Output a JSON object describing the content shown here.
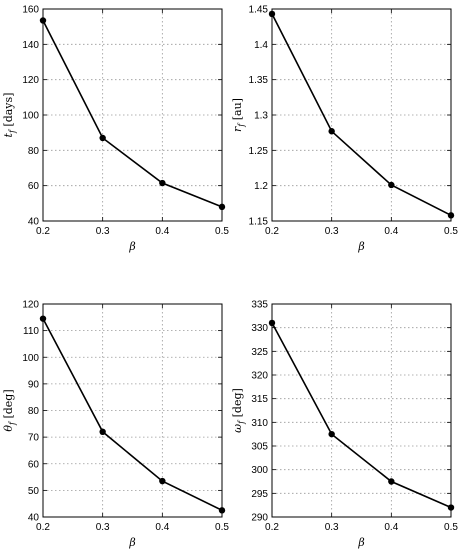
{
  "chart_data": [
    {
      "type": "line",
      "xlabel": "β",
      "ylabel": {
        "symbol": "t",
        "subscript": "f",
        "unit": "[days]"
      },
      "x": [
        0.2,
        0.3,
        0.4,
        0.5
      ],
      "values": [
        153.5,
        87,
        61.5,
        48
      ],
      "xlim": [
        0.2,
        0.5
      ],
      "ylim": [
        40,
        160
      ],
      "xticks": [
        "0.2",
        "0.3",
        "0.4",
        "0.5"
      ],
      "yticks": [
        "40",
        "60",
        "80",
        "100",
        "120",
        "140",
        "160"
      ],
      "grid": true
    },
    {
      "type": "line",
      "xlabel": "β",
      "ylabel": {
        "symbol": "r",
        "subscript": "f",
        "unit": "[au]"
      },
      "x": [
        0.2,
        0.3,
        0.4,
        0.5
      ],
      "values": [
        1.443,
        1.277,
        1.201,
        1.158
      ],
      "xlim": [
        0.2,
        0.5
      ],
      "ylim": [
        1.15,
        1.45
      ],
      "xticks": [
        "0.2",
        "0.3",
        "0.4",
        "0.5"
      ],
      "yticks": [
        "1.15",
        "1.2",
        "1.25",
        "1.3",
        "1.35",
        "1.4",
        "1.45"
      ],
      "grid": true
    },
    {
      "type": "line",
      "xlabel": "β",
      "ylabel": {
        "symbol": "θ",
        "subscript": "f",
        "unit": "[deg]"
      },
      "x": [
        0.2,
        0.3,
        0.4,
        0.5
      ],
      "values": [
        114.5,
        72,
        53.5,
        42.5
      ],
      "xlim": [
        0.2,
        0.5
      ],
      "ylim": [
        40,
        120
      ],
      "xticks": [
        "0.2",
        "0.3",
        "0.4",
        "0.5"
      ],
      "yticks": [
        "40",
        "50",
        "60",
        "70",
        "80",
        "90",
        "100",
        "110",
        "120"
      ],
      "grid": true
    },
    {
      "type": "line",
      "xlabel": "β",
      "ylabel": {
        "symbol": "ω",
        "subscript": "f",
        "unit": "[deg]"
      },
      "x": [
        0.2,
        0.3,
        0.4,
        0.5
      ],
      "values": [
        331,
        307.5,
        297.5,
        292
      ],
      "xlim": [
        0.2,
        0.5
      ],
      "ylim": [
        290,
        335
      ],
      "xticks": [
        "0.2",
        "0.3",
        "0.4",
        "0.5"
      ],
      "yticks": [
        "290",
        "295",
        "300",
        "305",
        "310",
        "315",
        "320",
        "325",
        "330",
        "335"
      ],
      "grid": true
    }
  ]
}
